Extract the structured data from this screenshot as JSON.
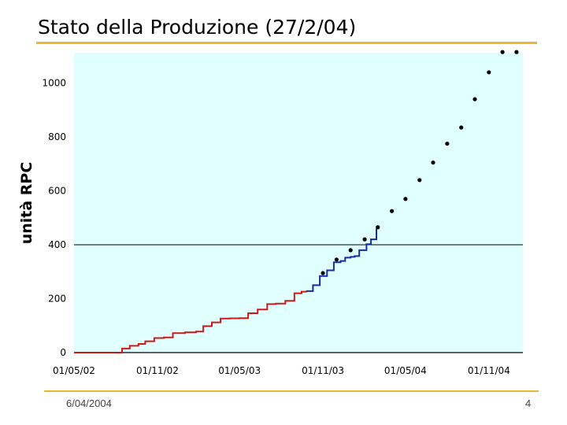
{
  "slide": {
    "title": "Stato della Produzione (27/2/04)",
    "footer_date": "6/04/2004",
    "page_number": "4"
  },
  "colors": {
    "plot_background": "#e0ffff",
    "accent_rule": "#e8b830",
    "measured_early": "#d01818",
    "measured_recent": "#1a2aa8",
    "projection_points": "#000000",
    "reference_line": "#000000"
  },
  "chart_data": {
    "type": "line",
    "title": "Stato della Produzione (27/2/04)",
    "xlabel": "",
    "ylabel": "unità RPC",
    "ylim": [
      0,
      1100
    ],
    "yticks": [
      0,
      200,
      400,
      600,
      800,
      1000
    ],
    "ytick_labels": [
      "0",
      "200",
      "400",
      "600",
      "800",
      "1000"
    ],
    "xlim": [
      "2002-05-01",
      "2005-01-15"
    ],
    "xticks": [
      "2002-05-01",
      "2002-11-01",
      "2003-05-01",
      "2003-11-01",
      "2004-05-01",
      "2004-11-01"
    ],
    "xtick_labels": [
      "01/05/02",
      "01/11/02",
      "01/05/03",
      "01/11/03",
      "01/05/04",
      "01/11/04"
    ],
    "grid": false,
    "reference_line": {
      "y": 400
    },
    "series": [
      {
        "kind": "line",
        "color": "#d01818",
        "x": [
          "2002-05-01",
          "2002-07-31",
          "2002-08-15",
          "2002-09-01",
          "2002-09-20",
          "2002-10-05",
          "2002-10-25",
          "2002-11-15",
          "2002-12-05",
          "2003-01-01",
          "2003-01-25",
          "2003-02-10",
          "2003-03-01",
          "2003-03-20",
          "2003-04-10",
          "2003-05-01",
          "2003-05-20",
          "2003-06-10",
          "2003-07-01",
          "2003-07-20",
          "2003-08-10",
          "2003-08-30",
          "2003-09-15",
          "2003-09-25"
        ],
        "y": [
          0,
          0,
          15,
          25,
          32,
          42,
          54,
          56,
          72,
          75,
          78,
          98,
          112,
          126,
          127,
          128,
          146,
          160,
          180,
          182,
          192,
          220,
          226,
          228
        ]
      },
      {
        "kind": "line",
        "color": "#1a2aa8",
        "x": [
          "2003-09-25",
          "2003-10-10",
          "2003-10-25",
          "2003-11-10",
          "2003-11-25",
          "2003-12-10",
          "2003-12-20",
          "2004-01-01",
          "2004-01-10",
          "2004-01-20",
          "2004-02-05",
          "2004-02-15",
          "2004-02-27"
        ],
        "y": [
          228,
          250,
          284,
          305,
          335,
          340,
          352,
          355,
          358,
          380,
          402,
          420,
          460
        ]
      },
      {
        "kind": "scatter",
        "color": "#000000",
        "x": [
          "2003-11-01",
          "2003-12-01",
          "2004-01-01",
          "2004-02-01",
          "2004-03-01",
          "2004-04-01",
          "2004-05-01",
          "2004-06-01",
          "2004-07-01",
          "2004-08-01",
          "2004-09-01",
          "2004-10-01",
          "2004-11-01",
          "2004-12-01",
          "2005-01-01"
        ],
        "y": [
          295,
          345,
          380,
          420,
          465,
          525,
          570,
          640,
          705,
          775,
          835,
          940,
          1040,
          1115,
          1115
        ]
      }
    ]
  }
}
